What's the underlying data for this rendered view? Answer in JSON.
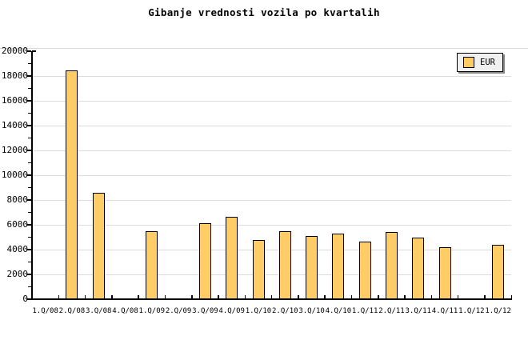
{
  "chart": {
    "title": "Gibanje vrednosti vozila po kvartalih",
    "legend": {
      "label": "EUR",
      "position": "top-right"
    }
  },
  "colors": {
    "bar_fill": "#FFCC66",
    "bar_border": "#000000",
    "grid": "#DCDCDC",
    "axis": "#000000",
    "legend_background": "#F0F0F0",
    "background": "#FFFFFF"
  },
  "chart_data": {
    "type": "bar",
    "title": "Gibanje vrednosti vozila po kvartalih",
    "series_name": "EUR",
    "categories": [
      "1.Q/08",
      "2.Q/08",
      "3.Q/08",
      "4.Q/08",
      "1.Q/09",
      "2.Q/09",
      "3.Q/09",
      "4.Q/09",
      "1.Q/10",
      "2.Q/10",
      "3.Q/10",
      "4.Q/10",
      "1.Q/11",
      "2.Q/11",
      "3.Q/11",
      "4.Q/11",
      "1.Q/12",
      "1.Q/12"
    ],
    "values": [
      null,
      18450,
      8600,
      null,
      5500,
      null,
      6100,
      6650,
      4750,
      5500,
      5100,
      5300,
      4650,
      5400,
      5000,
      4200,
      null,
      4400
    ],
    "xlabel": "",
    "ylabel": "",
    "ylim": [
      0,
      20000
    ],
    "y_tick_step": 2000,
    "y_minor_tick_step": 1000,
    "y_tick_labels": [
      "0",
      "2000",
      "4000",
      "6000",
      "8000",
      "10000",
      "12000",
      "14000",
      "16000",
      "18000",
      "20000"
    ],
    "grid": "horizontal-major",
    "legend_position": "top-right",
    "bar_color": "#FFCC66",
    "bar_border_color": "#000000"
  }
}
